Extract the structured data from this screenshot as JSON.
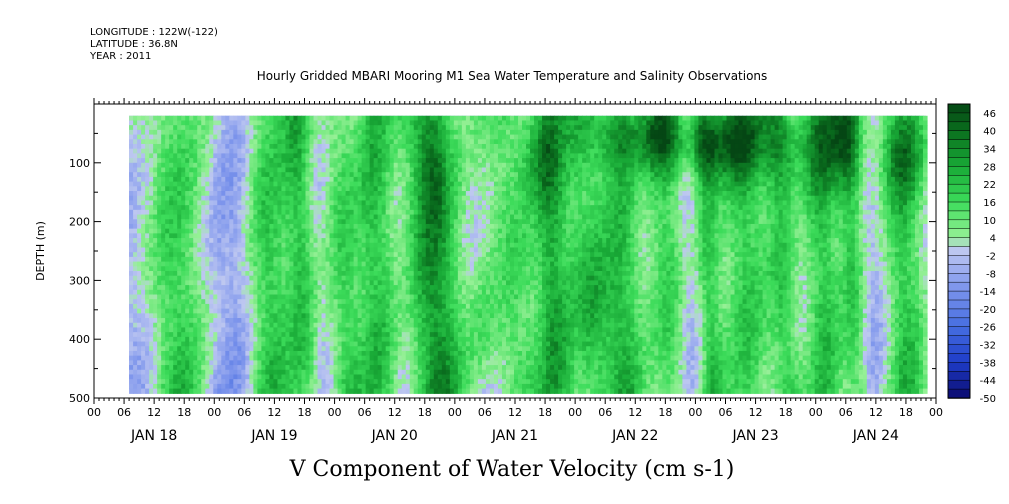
{
  "header": {
    "longitude": "LONGITUDE : 122W(-122)",
    "latitude": "LATITUDE : 36.8N",
    "year": "YEAR : 2011"
  },
  "chart_data": {
    "type": "heatmap",
    "title": "Hourly Gridded MBARI Mooring M1 Sea Water Temperature and Salinity Observations",
    "xlabel": "V Component of Water Velocity (cm s-1)",
    "ylabel": "DEPTH (m)",
    "y_reversed": true,
    "ylim": [
      500,
      0
    ],
    "y_ticks": [
      100,
      200,
      300,
      400,
      500
    ],
    "y_tick_labels": [
      "100",
      "200",
      "300",
      "400",
      "500"
    ],
    "x_hour_tick_labels": [
      "00",
      "06",
      "12",
      "18",
      "00",
      "06",
      "12",
      "18",
      "00",
      "06",
      "12",
      "18",
      "00",
      "06",
      "12",
      "18",
      "00",
      "06",
      "12",
      "18",
      "00",
      "06",
      "12",
      "18",
      "00",
      "06",
      "12",
      "18",
      "00"
    ],
    "day_labels": [
      "JAN 18",
      "JAN 19",
      "JAN 20",
      "JAN 21",
      "JAN 22",
      "JAN 23",
      "JAN 24"
    ],
    "x_range_hours": [
      0,
      168
    ],
    "data_range_hours": [
      7,
      166
    ],
    "data_depth_range": [
      20,
      485
    ],
    "colorbar": {
      "labels": [
        "46",
        "40",
        "34",
        "28",
        "22",
        "16",
        "10",
        "4",
        "-2",
        "-8",
        "-14",
        "-20",
        "-26",
        "-32",
        "-38",
        "-44",
        "-50"
      ],
      "levels": [
        49,
        46,
        43,
        40,
        37,
        34,
        31,
        28,
        25,
        22,
        19,
        16,
        13,
        10,
        7,
        4,
        1,
        -2,
        -5,
        -8,
        -11,
        -14,
        -17,
        -20,
        -23,
        -26,
        -29,
        -32,
        -35,
        -38,
        -41,
        -44,
        -47,
        -50
      ],
      "range": [
        -50,
        49
      ]
    },
    "green_bands_hours": [
      [
        14,
        10
      ],
      [
        33,
        7
      ],
      [
        40,
        5
      ],
      [
        48,
        6
      ],
      [
        55,
        6
      ],
      [
        64,
        7
      ],
      [
        68,
        7
      ],
      [
        82,
        9
      ],
      [
        90,
        5
      ],
      [
        97,
        8
      ],
      [
        104,
        6
      ],
      [
        113,
        6
      ],
      [
        121,
        4
      ],
      [
        129,
        8
      ],
      [
        136,
        5
      ],
      [
        144,
        6
      ],
      [
        150,
        4
      ],
      [
        160,
        7
      ]
    ],
    "strong_patches": [
      [
        106,
        50,
        8,
        60,
        20
      ],
      [
        115,
        60,
        5,
        60,
        20
      ],
      [
        122,
        60,
        4,
        60,
        24
      ],
      [
        128,
        60,
        6,
        70,
        24
      ],
      [
        138,
        60,
        5,
        80,
        20
      ],
      [
        149,
        60,
        6,
        90,
        26
      ],
      [
        161,
        80,
        5,
        80,
        20
      ],
      [
        88,
        80,
        4,
        80,
        14
      ],
      [
        100,
        350,
        4,
        120,
        12
      ],
      [
        77,
        380,
        3,
        120,
        10
      ],
      [
        67,
        100,
        3,
        100,
        12
      ]
    ]
  }
}
